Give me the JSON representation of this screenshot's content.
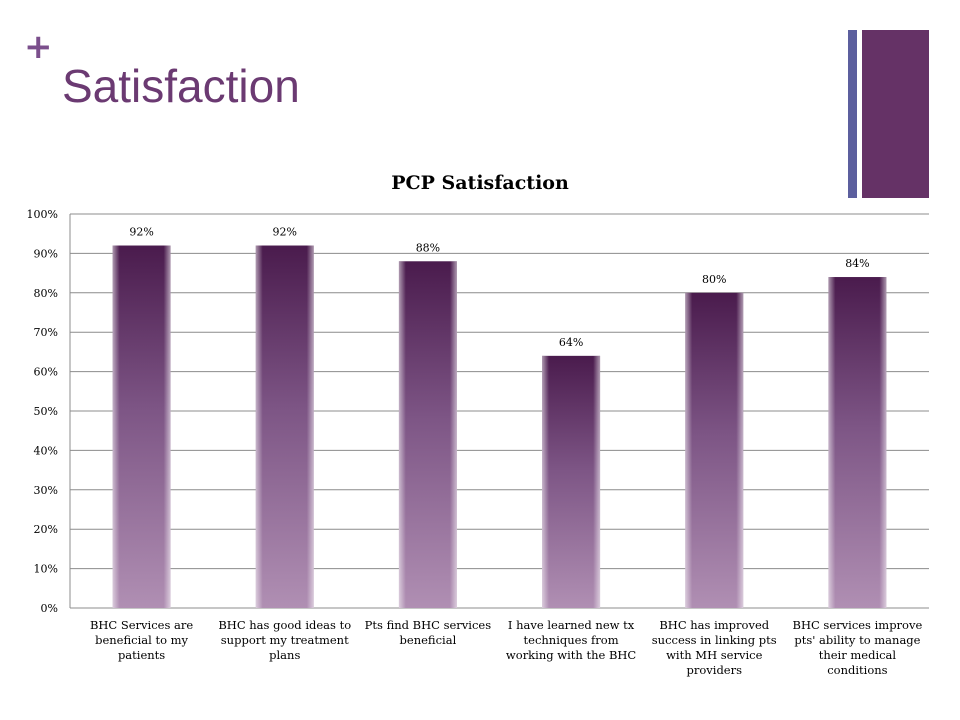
{
  "slide": {
    "plus_symbol": "+",
    "title": "Satisfaction",
    "colors": {
      "title": "#6b3a72",
      "accent_thin": "#5c5f9e",
      "accent_thick": "#653266",
      "bar_top": "#4a1b4d",
      "bar_bottom": "#b08fb3"
    }
  },
  "chart_data": {
    "type": "bar",
    "title": "PCP Satisfaction",
    "categories": [
      "BHC Services are beneficial to my patients",
      "BHC has good ideas to support my treatment plans",
      "Pts find BHC services beneficial",
      "I have learned new tx techniques from working with the BHC",
      "BHC has improved success in linking pts with MH service providers",
      "BHC services improve pts' ability to manage their medical conditions"
    ],
    "values": [
      92,
      92,
      88,
      64,
      80,
      84
    ],
    "data_labels": [
      "92%",
      "92%",
      "88%",
      "64%",
      "80%",
      "84%"
    ],
    "ylim": [
      0,
      100
    ],
    "y_ticks": [
      "0%",
      "10%",
      "20%",
      "30%",
      "40%",
      "50%",
      "60%",
      "70%",
      "80%",
      "90%",
      "100%"
    ],
    "grid": true,
    "legend": "none"
  }
}
